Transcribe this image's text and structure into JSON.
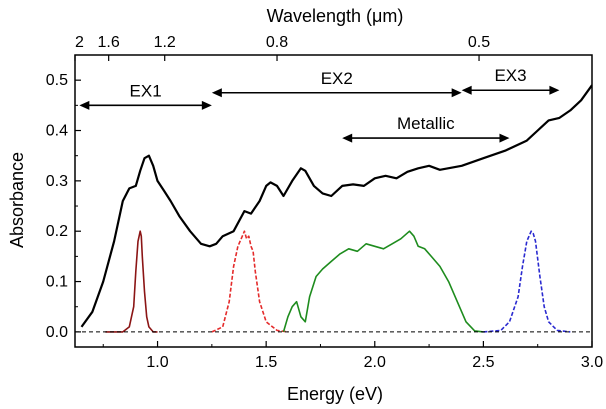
{
  "chart_data": {
    "type": "line",
    "xlabel": "Energy (eV)",
    "ylabel": "Absorbance",
    "top_axis_label": "Wavelength (μm)",
    "xlim": [
      0.62,
      3.0
    ],
    "ylim": [
      -0.03,
      0.55
    ],
    "x_ticks": [
      1.0,
      1.5,
      2.0,
      2.5,
      3.0
    ],
    "x_tick_labels": [
      "1.0",
      "1.5",
      "2.0",
      "2.5",
      "3.0"
    ],
    "y_ticks": [
      0.0,
      0.1,
      0.2,
      0.3,
      0.4,
      0.5
    ],
    "y_tick_labels": [
      "0.0",
      "0.1",
      "0.2",
      "0.3",
      "0.4",
      "0.5"
    ],
    "top_ticks": [
      {
        "label": "2",
        "energy": 0.62
      },
      {
        "label": "1.6",
        "energy": 0.775
      },
      {
        "label": "1.2",
        "energy": 1.033
      },
      {
        "label": "0.8",
        "energy": 1.55
      },
      {
        "label": "0.5",
        "energy": 2.48
      }
    ],
    "baseline": 0.0,
    "grid": false,
    "series": [
      {
        "color": "#000000",
        "style": "solid",
        "x": [
          0.65,
          0.7,
          0.75,
          0.8,
          0.84,
          0.87,
          0.9,
          0.92,
          0.94,
          0.96,
          0.98,
          1.0,
          1.03,
          1.06,
          1.1,
          1.15,
          1.2,
          1.24,
          1.27,
          1.3,
          1.35,
          1.4,
          1.43,
          1.47,
          1.5,
          1.52,
          1.55,
          1.58,
          1.62,
          1.66,
          1.68,
          1.72,
          1.76,
          1.8,
          1.85,
          1.9,
          1.95,
          2.0,
          2.05,
          2.1,
          2.15,
          2.2,
          2.25,
          2.3,
          2.4,
          2.5,
          2.6,
          2.7,
          2.75,
          2.8,
          2.85,
          2.9,
          2.95,
          3.0
        ],
        "y": [
          0.01,
          0.04,
          0.1,
          0.18,
          0.26,
          0.285,
          0.29,
          0.32,
          0.345,
          0.35,
          0.33,
          0.3,
          0.28,
          0.26,
          0.23,
          0.2,
          0.175,
          0.17,
          0.175,
          0.19,
          0.2,
          0.24,
          0.235,
          0.26,
          0.29,
          0.297,
          0.29,
          0.27,
          0.3,
          0.325,
          0.32,
          0.29,
          0.275,
          0.27,
          0.29,
          0.293,
          0.29,
          0.305,
          0.31,
          0.305,
          0.318,
          0.325,
          0.33,
          0.322,
          0.33,
          0.345,
          0.36,
          0.38,
          0.4,
          0.42,
          0.425,
          0.44,
          0.46,
          0.49
        ]
      },
      {
        "color": "#8b1515",
        "style": "solid",
        "x": [
          0.76,
          0.84,
          0.87,
          0.89,
          0.9,
          0.91,
          0.92,
          0.925,
          0.93,
          0.94,
          0.95,
          0.96,
          0.98,
          1.0
        ],
        "y": [
          0.0,
          0.0,
          0.01,
          0.05,
          0.12,
          0.18,
          0.2,
          0.19,
          0.15,
          0.08,
          0.03,
          0.01,
          0.0,
          0.0
        ]
      },
      {
        "color": "#e42b2b",
        "style": "dashed",
        "x": [
          1.25,
          1.3,
          1.33,
          1.35,
          1.37,
          1.39,
          1.4,
          1.41,
          1.42,
          1.43,
          1.44,
          1.45,
          1.47,
          1.5,
          1.55,
          1.6
        ],
        "y": [
          0.0,
          0.01,
          0.06,
          0.13,
          0.17,
          0.19,
          0.2,
          0.185,
          0.19,
          0.17,
          0.16,
          0.12,
          0.06,
          0.02,
          0.003,
          0.0
        ]
      },
      {
        "color": "#1e8c1e",
        "style": "solid",
        "x": [
          1.58,
          1.6,
          1.62,
          1.64,
          1.66,
          1.68,
          1.7,
          1.73,
          1.76,
          1.8,
          1.84,
          1.88,
          1.92,
          1.96,
          2.0,
          2.04,
          2.08,
          2.12,
          2.16,
          2.18,
          2.2,
          2.23,
          2.26,
          2.3,
          2.34,
          2.38,
          2.42,
          2.46,
          2.5
        ],
        "y": [
          0.0,
          0.03,
          0.05,
          0.06,
          0.03,
          0.02,
          0.07,
          0.11,
          0.125,
          0.14,
          0.155,
          0.165,
          0.16,
          0.175,
          0.17,
          0.165,
          0.175,
          0.185,
          0.2,
          0.19,
          0.17,
          0.165,
          0.15,
          0.13,
          0.1,
          0.06,
          0.02,
          0.002,
          0.0
        ]
      },
      {
        "color": "#2a2ad0",
        "style": "dashed",
        "x": [
          2.5,
          2.58,
          2.62,
          2.66,
          2.68,
          2.7,
          2.72,
          2.73,
          2.74,
          2.76,
          2.78,
          2.8,
          2.84,
          2.9
        ],
        "y": [
          0.0,
          0.003,
          0.02,
          0.07,
          0.13,
          0.18,
          0.2,
          0.195,
          0.18,
          0.11,
          0.05,
          0.02,
          0.003,
          0.0
        ]
      }
    ],
    "annotations": [
      {
        "label": "EX1",
        "x_from": 0.64,
        "x_to": 1.25,
        "y": 0.45
      },
      {
        "label": "EX2",
        "x_from": 1.25,
        "x_to": 2.4,
        "y": 0.475
      },
      {
        "label": "EX3",
        "x_from": 2.4,
        "x_to": 2.85,
        "y": 0.48
      },
      {
        "label": "Metallic",
        "x_from": 1.85,
        "x_to": 2.62,
        "y": 0.385
      }
    ]
  }
}
